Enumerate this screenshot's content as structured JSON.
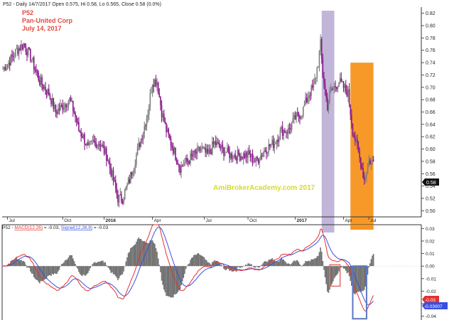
{
  "header": {
    "symbol_line": "P52 - Daily 14/7/2017 Open 0.575, Hi 0.58, Lo 0.565, Close 0.58 (0.0%)"
  },
  "annotation": {
    "code": "P52",
    "company": "Pan-United Corp",
    "date": "July 14, 2017",
    "watermark": "AmiBrokerAcademy.com  2017"
  },
  "macd_header": {
    "prefix": "P52 - ",
    "macd_label": "MACD(12,26)",
    "macd_value": " = -0.03, ",
    "signal_label": "Signal(12,26,9)",
    "signal_value": " = -0.03"
  },
  "last_price_tag": "0.58",
  "macd_tags": {
    "macd": "-0.03",
    "signal": "-0.03007"
  },
  "colors": {
    "bull": "#808080",
    "bear": "#8b1a8b",
    "macd": "#e53030",
    "signal": "#3a4fe0",
    "hist": "#707070",
    "purple_zone": "#b6a9d3",
    "orange_zone": "#f7931e",
    "red_box": "#e06a60",
    "blue_box": "#5a78bf",
    "title_red": "#e44a40",
    "watermark": "#d9d92a"
  },
  "chart_data": [
    {
      "type": "candlestick",
      "title": "P52 - Daily 14/7/2017 Open 0.575, Hi 0.58, Lo 0.565, Close 0.58 (0.0%)",
      "xlabel": "",
      "ylabel": "",
      "ylim": [
        0.49,
        0.83
      ],
      "y_ticks": [
        0.5,
        0.52,
        0.54,
        0.56,
        0.58,
        0.6,
        0.62,
        0.64,
        0.66,
        0.68,
        0.7,
        0.72,
        0.74,
        0.76,
        0.78,
        0.8,
        0.82
      ],
      "x_tick_labels": [
        "Jul",
        "Oct",
        "2016",
        "Apr",
        "Jul",
        "Oct",
        "2017",
        "Apr",
        "Jul"
      ],
      "price_path_anchors": [
        [
          0,
          0.73
        ],
        [
          5,
          0.74
        ],
        [
          12,
          0.76
        ],
        [
          18,
          0.77
        ],
        [
          24,
          0.75
        ],
        [
          32,
          0.71
        ],
        [
          40,
          0.69
        ],
        [
          46,
          0.66
        ],
        [
          52,
          0.67
        ],
        [
          58,
          0.68
        ],
        [
          62,
          0.66
        ],
        [
          66,
          0.63
        ],
        [
          70,
          0.62
        ],
        [
          74,
          0.6
        ],
        [
          78,
          0.61
        ],
        [
          84,
          0.61
        ],
        [
          90,
          0.59
        ],
        [
          96,
          0.55
        ],
        [
          100,
          0.52
        ],
        [
          104,
          0.52
        ],
        [
          110,
          0.55
        ],
        [
          116,
          0.59
        ],
        [
          122,
          0.63
        ],
        [
          126,
          0.66
        ],
        [
          130,
          0.71
        ],
        [
          134,
          0.71
        ],
        [
          138,
          0.66
        ],
        [
          142,
          0.63
        ],
        [
          148,
          0.6
        ],
        [
          154,
          0.57
        ],
        [
          160,
          0.58
        ],
        [
          166,
          0.59
        ],
        [
          172,
          0.6
        ],
        [
          178,
          0.59
        ],
        [
          184,
          0.61
        ],
        [
          190,
          0.6
        ],
        [
          198,
          0.59
        ],
        [
          206,
          0.59
        ],
        [
          214,
          0.59
        ],
        [
          220,
          0.58
        ],
        [
          228,
          0.6
        ],
        [
          236,
          0.61
        ],
        [
          242,
          0.63
        ],
        [
          248,
          0.63
        ],
        [
          254,
          0.65
        ],
        [
          260,
          0.66
        ],
        [
          266,
          0.69
        ],
        [
          270,
          0.7
        ],
        [
          274,
          0.74
        ],
        [
          276,
          0.77
        ],
        [
          278,
          0.72
        ],
        [
          282,
          0.67
        ],
        [
          284,
          0.69
        ],
        [
          288,
          0.7
        ],
        [
          292,
          0.71
        ],
        [
          296,
          0.7
        ],
        [
          300,
          0.69
        ],
        [
          304,
          0.63
        ],
        [
          308,
          0.6
        ],
        [
          312,
          0.57
        ],
        [
          314,
          0.55
        ],
        [
          318,
          0.58
        ],
        [
          322,
          0.58
        ]
      ],
      "last_close": 0.58,
      "zones": [
        {
          "color": "purple",
          "from_bar": 277,
          "to_bar": 288,
          "y_from": 0.49,
          "y_to": 0.82
        },
        {
          "color": "orange",
          "from_bar": 302,
          "to_bar": 322,
          "y_from": 0.49,
          "y_to": 0.74
        }
      ]
    },
    {
      "type": "line",
      "title": "P52 - MACD(12,26) = -0.03, Signal(12,26,9) = -0.03",
      "ylim": [
        -0.043,
        0.033
      ],
      "y_ticks": [
        -0.04,
        -0.03,
        -0.02,
        -0.01,
        0.0,
        0.01,
        0.02,
        0.03
      ],
      "series": [
        {
          "name": "MACD(12,26)",
          "color": "#e53030"
        },
        {
          "name": "Signal(12,26,9)",
          "color": "#3a4fe0"
        }
      ],
      "histogram": true,
      "last_values": {
        "MACD(12,26)": -0.03,
        "Signal(12,26,9)": -0.03007
      }
    }
  ]
}
